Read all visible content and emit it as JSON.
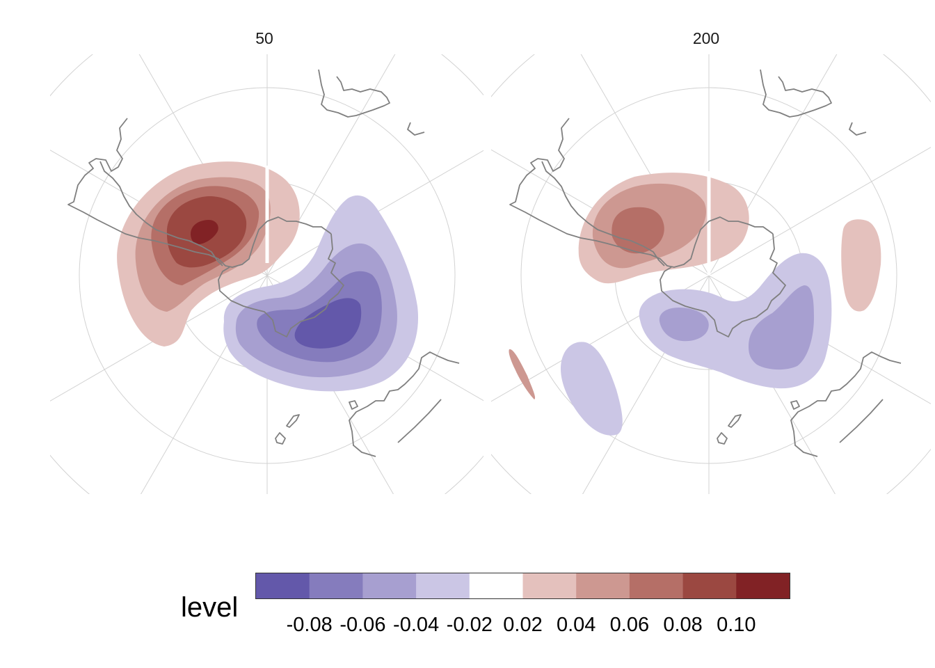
{
  "chart_data": {
    "type": "contour-map",
    "projection": "south-polar-stereographic",
    "legend": {
      "title": "level",
      "position": "bottom",
      "bins": [
        {
          "from": -0.1,
          "to": -0.08,
          "color": "#6358aa"
        },
        {
          "from": -0.08,
          "to": -0.06,
          "color": "#857cbd"
        },
        {
          "from": -0.06,
          "to": -0.04,
          "color": "#a79fd0"
        },
        {
          "from": -0.04,
          "to": -0.02,
          "color": "#cbc6e5"
        },
        {
          "from": -0.02,
          "to": 0.02,
          "color": "#ffffff"
        },
        {
          "from": 0.02,
          "to": 0.04,
          "color": "#e4c1bd"
        },
        {
          "from": 0.04,
          "to": 0.06,
          "color": "#cd9891"
        },
        {
          "from": 0.06,
          "to": 0.08,
          "color": "#b56f67"
        },
        {
          "from": 0.08,
          "to": 0.1,
          "color": "#9b4841"
        },
        {
          "from": 0.1,
          "to": 0.12,
          "color": "#812225"
        }
      ],
      "tick_labels": [
        "-0.08",
        "-0.06",
        "-0.04",
        "-0.02",
        "0.02",
        "0.04",
        "0.06",
        "0.08",
        "0.10"
      ]
    },
    "panels": [
      {
        "title": "50",
        "anomalies": [
          {
            "sign": "positive",
            "peak_level": 0.11,
            "location": "west-northwest of pole"
          },
          {
            "sign": "negative",
            "peak_level": -0.09,
            "location": "southeast of pole"
          }
        ]
      },
      {
        "title": "200",
        "anomalies": [
          {
            "sign": "positive",
            "peak_level": 0.09,
            "location": "west-northwest of pole"
          },
          {
            "sign": "negative",
            "peak_level": -0.05,
            "location": "south-southeast of pole"
          },
          {
            "sign": "positive",
            "peak_level": 0.03,
            "location": "east of pole"
          },
          {
            "sign": "negative",
            "peak_level": -0.03,
            "location": "southwest of pole"
          },
          {
            "sign": "positive",
            "peak_level": 0.03,
            "location": "far southwest edge"
          }
        ]
      }
    ],
    "graticule": {
      "rings": 3,
      "meridians": 6,
      "grid": true
    },
    "coastlines": true
  }
}
